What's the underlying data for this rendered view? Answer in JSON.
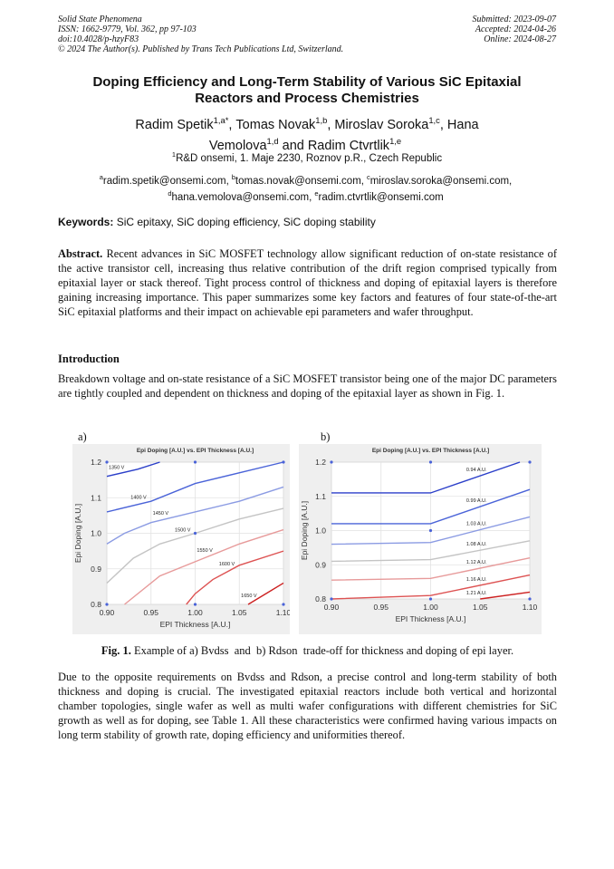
{
  "header": {
    "left": [
      "Solid State Phenomena",
      "ISSN: 1662-9779, Vol. 362, pp 97-103",
      "doi:10.4028/p-hzyF83",
      "© 2024 The Author(s). Published by Trans Tech Publications Ltd, Switzerland."
    ],
    "right": [
      "Submitted: 2023-09-07",
      "Accepted: 2024-04-26",
      "Online: 2024-08-27"
    ]
  },
  "title": "Doping Efficiency and Long-Term Stability of Various SiC Epitaxial Reactors and Process Chemistries",
  "authors": [
    {
      "name": "Radim Spetik",
      "sup": "1,a*",
      "sep": ","
    },
    {
      "name": "Tomas Novak",
      "sup": "1,b",
      "sep": ","
    },
    {
      "name": "Miroslav Soroka",
      "sup": "1,c",
      "sep": ","
    },
    {
      "name": "Hana Vemolova",
      "sup": "1,d",
      "sep": "and"
    },
    {
      "name": "Radim Ctvrtlik",
      "sup": "1,e"
    }
  ],
  "affiliation": {
    "sup": "1",
    "text": "R&D onsemi, 1. Maje 2230, Roznov p.R., Czech Republic"
  },
  "emails": [
    {
      "sup": "a",
      "email": "radim.spetik@onsemi.com,"
    },
    {
      "sup": "b",
      "email": "tomas.novak@onsemi.com,"
    },
    {
      "sup": "c",
      "email": "miroslav.soroka@onsemi.com,"
    },
    {
      "sup": "d",
      "email": "hana.vemolova@onsemi.com,"
    },
    {
      "sup": "e",
      "email": "radim.ctvrtlik@onsemi.com"
    }
  ],
  "keywords": {
    "label": "Keywords:",
    "text": "SiC epitaxy, SiC doping efficiency, SiC doping stability"
  },
  "abstract": {
    "label": "Abstract.",
    "text": "Recent advances in SiC MOSFET technology allow significant reduction of on-state resistance of the active transistor cell, increasing thus relative contribution of the drift region comprised typically from epitaxial layer or stack thereof. Tight process control of thickness and doping of epitaxial layers is therefore gaining increasing importance. This paper summarizes some key factors and features of four state-of-the-art SiC epitaxial platforms and their impact on achievable epi parameters and wafer throughput."
  },
  "introduction": {
    "heading": "Introduction",
    "text": "Breakdown voltage and on-state resistance of a SiC MOSFET transistor being one of the major DC parameters are tightly coupled and dependent on thickness and doping of the epitaxial layer as shown in Fig. 1."
  },
  "figure": {
    "panels": [
      "a)",
      "b)"
    ],
    "caption_label": "Fig. 1.",
    "caption": "Example of a) Bvdss  and  b) Rdson  trade-off for thickness and doping of epi layer."
  },
  "paragraph": "Due to the opposite requirements on Bvdss and Rdson, a precise control and long-term stability of both thickness and doping is crucial. The investigated epitaxial reactors include both vertical and horizontal chamber topologies, single wafer as well as multi wafer configurations with different chemistries for SiC growth as well as for doping, see Table 1. All these characteristics were confirmed having various impacts on long term stability of growth rate, doping efficiency and uniformities thereof.",
  "chart_data": [
    {
      "type": "line",
      "title": "Epi Doping [A.U.] vs. EPI Thickness [A.U.]",
      "x_label": "EPI Thickness [A.U.]",
      "y_label": "Epi Doping [A.U.]",
      "xlim": [
        0.9,
        1.1
      ],
      "ylim": [
        0.8,
        1.2
      ],
      "xticks": [
        {
          "value": 0.9,
          "label": "0.90"
        },
        {
          "value": 0.95,
          "label": "0.95"
        },
        {
          "value": 1,
          "label": "1.00"
        },
        {
          "value": 1.05,
          "label": "1.05"
        },
        {
          "value": 1.1,
          "label": "1.10"
        }
      ],
      "yticks": [
        0.8,
        0.9,
        {
          "value": 1,
          "label": "1.0"
        },
        1.1,
        1.2
      ],
      "grid": true,
      "series": [
        {
          "name": "1350 V",
          "color": "#2b3fc9",
          "x": [
            0.9,
            0.935,
            0.96
          ],
          "values": [
            1.16,
            1.18,
            1.2
          ]
        },
        {
          "name": "1400 V",
          "color": "#4a63d8",
          "x": [
            0.9,
            0.95,
            1.0,
            1.1
          ],
          "values": [
            1.06,
            1.09,
            1.14,
            1.2
          ]
        },
        {
          "name": "1450 V",
          "color": "#8b9be3",
          "x": [
            0.9,
            0.92,
            0.95,
            1.0,
            1.05,
            1.1
          ],
          "values": [
            0.97,
            1.0,
            1.03,
            1.06,
            1.09,
            1.13
          ]
        },
        {
          "name": "1500 V",
          "color": "#c4c4c4",
          "x": [
            0.9,
            0.93,
            0.96,
            1.0,
            1.05,
            1.1
          ],
          "values": [
            0.86,
            0.93,
            0.97,
            1.0,
            1.04,
            1.07
          ]
        },
        {
          "name": "1550 V",
          "color": "#e79a9a",
          "x": [
            0.92,
            0.96,
            1.0,
            1.05,
            1.1
          ],
          "values": [
            0.8,
            0.88,
            0.92,
            0.97,
            1.01
          ]
        },
        {
          "name": "1600 V",
          "color": "#dd5252",
          "x": [
            0.99,
            1.0,
            1.02,
            1.05,
            1.1
          ],
          "values": [
            0.8,
            0.83,
            0.87,
            0.91,
            0.95
          ]
        },
        {
          "name": "1650 V",
          "color": "#cc2020",
          "x": [
            1.06,
            1.08,
            1.1
          ],
          "values": [
            0.8,
            0.83,
            0.86
          ]
        }
      ],
      "points": {
        "color": "#4a63d8",
        "x": [
          0.9,
          1.0,
          1.1,
          1.0,
          0.9,
          1.0,
          1.1
        ],
        "y": [
          1.2,
          1.2,
          1.2,
          1.0,
          0.8,
          0.8,
          0.8
        ]
      }
    },
    {
      "type": "line",
      "title": "Epi Doping [A.U.] vs. EPI Thickness [A.U.]",
      "x_label": "EPI Thickness [A.U.]",
      "y_label": "Epi Doping [A.U.]",
      "xlim": [
        0.9,
        1.1
      ],
      "ylim": [
        0.8,
        1.2
      ],
      "xticks": [
        {
          "value": 0.9,
          "label": "0.90"
        },
        {
          "value": 0.95,
          "label": "0.95"
        },
        {
          "value": 1,
          "label": "1.00"
        },
        {
          "value": 1.05,
          "label": "1.05"
        },
        {
          "value": 1.1,
          "label": "1.10"
        }
      ],
      "yticks": [
        0.8,
        0.9,
        {
          "value": 1,
          "label": "1.0"
        },
        1.1,
        1.2
      ],
      "grid": true,
      "series": [
        {
          "name": "0.94 A.U.",
          "color": "#2b3fc9",
          "x": [
            0.9,
            1.0,
            1.09
          ],
          "values": [
            1.11,
            1.11,
            1.2
          ]
        },
        {
          "name": "0.99 A.U.",
          "color": "#4a63d8",
          "x": [
            0.9,
            1.0,
            1.1
          ],
          "values": [
            1.02,
            1.02,
            1.12
          ]
        },
        {
          "name": "1.03 A.U.",
          "color": "#8b9be3",
          "x": [
            0.9,
            1.0,
            1.1
          ],
          "values": [
            0.96,
            0.965,
            1.04
          ]
        },
        {
          "name": "1.08 A.U.",
          "color": "#c4c4c4",
          "x": [
            0.9,
            1.0,
            1.1
          ],
          "values": [
            0.91,
            0.915,
            0.97
          ]
        },
        {
          "name": "1.12 A.U.",
          "color": "#e79a9a",
          "x": [
            0.9,
            1.0,
            1.1
          ],
          "values": [
            0.855,
            0.86,
            0.92
          ]
        },
        {
          "name": "1.16 A.U.",
          "color": "#dd5252",
          "x": [
            0.9,
            1.0,
            1.1
          ],
          "values": [
            0.8,
            0.81,
            0.87
          ]
        },
        {
          "name": "1.21 A.U.",
          "color": "#cc2020",
          "x": [
            1.05,
            1.1
          ],
          "values": [
            0.8,
            0.82
          ]
        }
      ],
      "points": {
        "color": "#4a63d8",
        "x": [
          0.9,
          1.0,
          1.1,
          1.0,
          0.9,
          1.0,
          1.1
        ],
        "y": [
          1.2,
          1.2,
          1.2,
          1.0,
          0.8,
          0.8,
          0.8
        ]
      }
    }
  ]
}
